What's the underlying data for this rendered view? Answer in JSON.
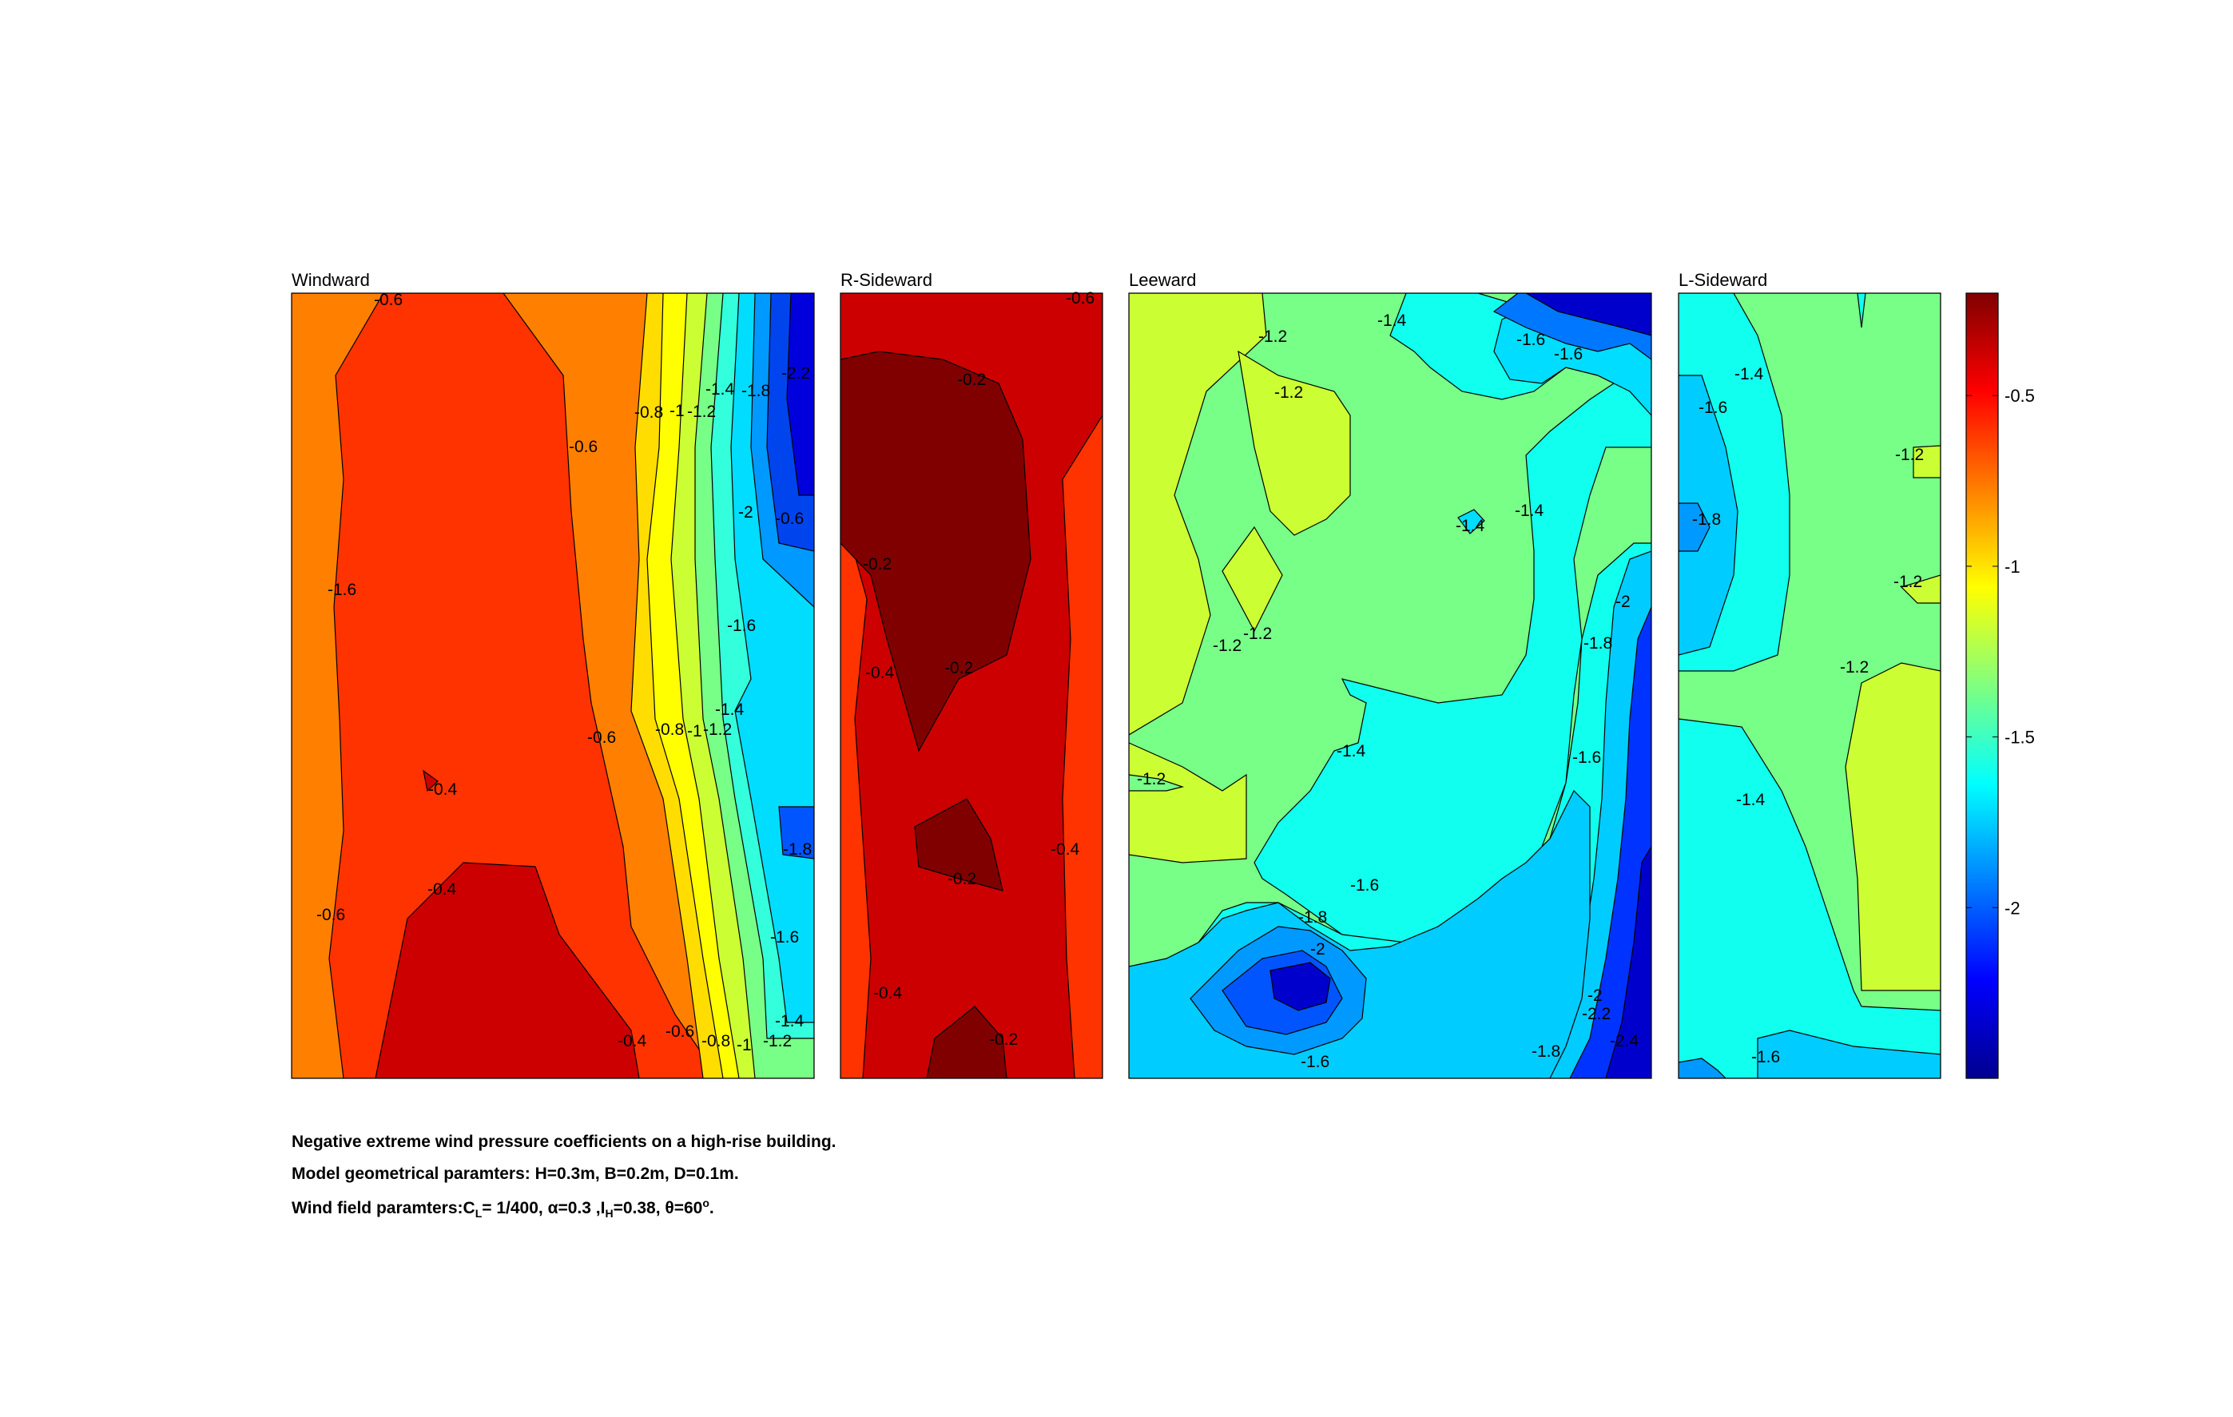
{
  "chart_data": [
    {
      "type": "contour",
      "title": "Windward",
      "colormap": "jet",
      "clim": [
        -2.5,
        -0.2
      ],
      "contour_labels": [
        "-0.6",
        "-0.6",
        "-0.8",
        "-1",
        "-1.2",
        "-1.4",
        "-1.8",
        "-2.2",
        "-1.6",
        "-2",
        "-0.6",
        "-1.6",
        "-0.4",
        "-0.6",
        "-0.8",
        "-1",
        "-1.2",
        "-1.4",
        "-1.8",
        "-0.6",
        "-0.4",
        "-1.6",
        "-0.4",
        "-0.6",
        "-0.8",
        "-1",
        "-1.2",
        "-1.4"
      ]
    },
    {
      "type": "contour",
      "title": "R-Sideward",
      "colormap": "jet",
      "clim": [
        -2.5,
        -0.2
      ],
      "contour_labels": [
        "-0.6",
        "-0.2",
        "-0.2",
        "-0.4",
        "-0.2",
        "-0.2",
        "-0.4",
        "-0.4",
        "-0.2"
      ]
    },
    {
      "type": "contour",
      "title": "Leeward",
      "colormap": "jet",
      "clim": [
        -2.5,
        -0.2
      ],
      "contour_labels": [
        "-1.2",
        "-1.4",
        "-1.6",
        "-1.6",
        "-1.2",
        "-1.4",
        "-1.4",
        "-1.2",
        "-1.2",
        "-2",
        "-1.8",
        "-1.4",
        "-1.2",
        "-1.6",
        "-1.6",
        "-1.8",
        "-2",
        "-2",
        "-2.2",
        "-1.6",
        "-2.4",
        "-1.8"
      ]
    },
    {
      "type": "contour",
      "title": "L-Sideward",
      "colormap": "jet",
      "clim": [
        -2.5,
        -0.2
      ],
      "contour_labels": [
        "-1.4",
        "-1.6",
        "-1.2",
        "-1.8",
        "-1.2",
        "-1.2",
        "-1.4",
        "-1.6"
      ]
    }
  ],
  "colorbar": {
    "ticks": [
      "-0.5",
      "-1",
      "-1.5",
      "-2"
    ],
    "tick_values": [
      -0.5,
      -1,
      -1.5,
      -2
    ],
    "range": [
      -2.5,
      -0.2
    ]
  },
  "caption": {
    "line1": "Negative extreme wind pressure coefficients on a high-rise building.",
    "line2": "Model geometrical paramters: H=0.3m, B=0.2m, D=0.1m.",
    "line3_a": "Wind field paramters:C",
    "line3_sub1": "L",
    "line3_b": "= 1/400, α=0.3 ,I",
    "line3_sub2": "H",
    "line3_c": "=0.38, θ=60",
    "line3_sup": "o",
    "line3_d": "."
  }
}
